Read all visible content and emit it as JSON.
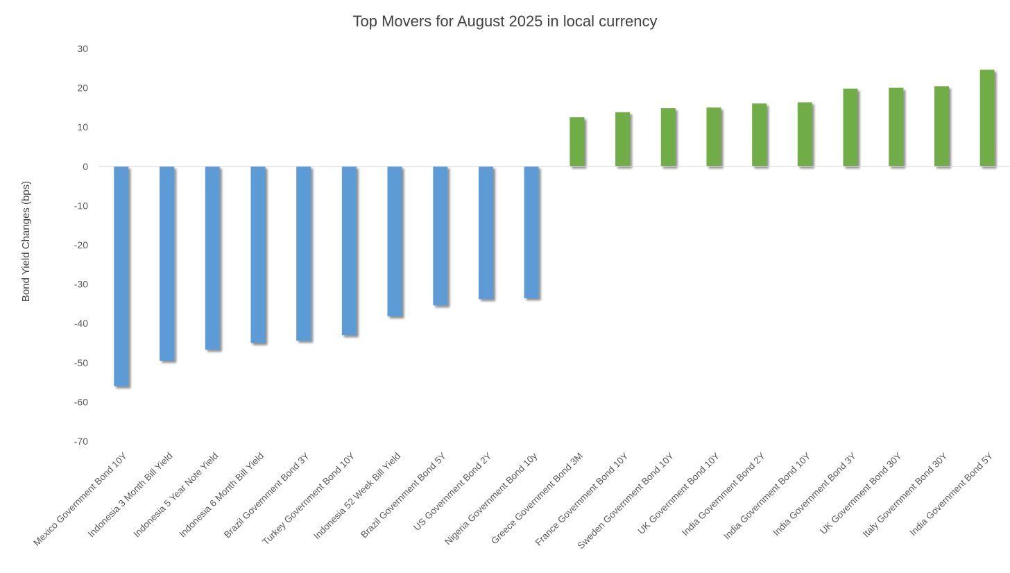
{
  "chart_data": {
    "type": "bar",
    "title": "Top Movers for August 2025 in local currency",
    "xlabel": "",
    "ylabel": "Bond Yield Changes (bps)",
    "ylim": [
      -70,
      30
    ],
    "yticks": [
      30,
      20,
      10,
      0,
      -10,
      -20,
      -30,
      -40,
      -50,
      -60,
      -70
    ],
    "grid": false,
    "legend": "none",
    "colors": {
      "negative": "#5b9bd5",
      "positive": "#70ad47",
      "zero_line": "#d9d9d9",
      "text": "#595959",
      "title": "#404040"
    },
    "categories": [
      "Mexico Government Bond 10Y",
      "Indonesia 3 Month Bill Yield",
      "Indonesia 5 Year Note Yield",
      "Indonesia 6 Month Bill Yield",
      "Brazil Government Bond 3Y",
      "Turkey Government Bond 10Y",
      "Indonesia 52 Week Bill Yield",
      "Brazil Government Bond 5Y",
      "US Government Bond 2Y",
      "Nigeria Government Bond 10y",
      "Greece Government Bond 3M",
      "France Government Bond 10Y",
      "Sweden Government Bond 10Y",
      "UK Government Bond 10Y",
      "India Government Bond 2Y",
      "India Government Bond 10Y",
      "India Government Bond 3Y",
      "UK Government Bond 30Y",
      "Italy Government Bond 30Y",
      "India Government Bond 5Y"
    ],
    "values": [
      -56,
      -49.5,
      -46.7,
      -45,
      -44.4,
      -43,
      -38.2,
      -35.4,
      -33.8,
      -33.6,
      12.5,
      13.8,
      14.8,
      15,
      16,
      16.3,
      19.8,
      20,
      20.4,
      24.6
    ]
  }
}
